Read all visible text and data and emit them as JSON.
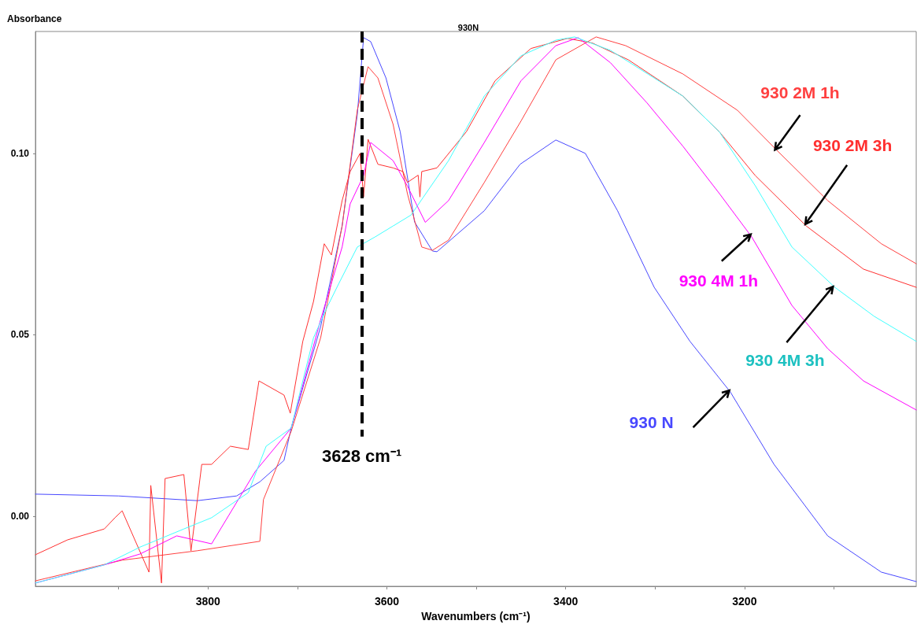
{
  "chart_data": {
    "type": "line",
    "title": "930N",
    "xlabel": "Wavenumbers (cm⁻¹)",
    "ylabel": "Absorbance",
    "xlim": [
      3993,
      3008
    ],
    "xticks": [
      {
        "value": 3900,
        "label": null
      },
      3800,
      {
        "value": 3700,
        "label": null
      },
      3600,
      {
        "value": 3500,
        "label": null
      },
      3400,
      {
        "value": 3300,
        "label": null
      },
      3200,
      {
        "value": 3100,
        "label": null
      }
    ],
    "ylim": [
      -0.0193,
      0.1336
    ],
    "yticks": [
      {
        "value": 0,
        "label": "0.00"
      },
      {
        "value": 0.05,
        "label": "0.05"
      },
      {
        "value": 0.1,
        "label": "0.10"
      }
    ],
    "grid": false,
    "marker": "none",
    "line_style": "solid",
    "series": [
      {
        "color": "#4848ff",
        "x": [
          3993,
          3900,
          3812,
          3768,
          3742,
          3715,
          3707,
          3674,
          3650,
          3633,
          3626,
          3618,
          3601,
          3585,
          3569,
          3549,
          3544,
          3491,
          3451,
          3411,
          3378,
          3342,
          3301,
          3261,
          3216,
          3167,
          3107,
          3047,
          3008
        ],
        "values": [
          0.0061,
          0.0056,
          0.0043,
          0.0056,
          0.0095,
          0.0154,
          0.0243,
          0.0523,
          0.08,
          0.1108,
          0.1319,
          0.1308,
          0.1208,
          0.1059,
          0.0811,
          0.0731,
          0.0729,
          0.0842,
          0.097,
          0.1037,
          0.1,
          0.0842,
          0.0631,
          0.0482,
          0.0343,
          0.0143,
          -0.0054,
          -0.0154,
          -0.018
        ]
      },
      {
        "color": "#ff4040",
        "x": [
          3993,
          3896,
          3812,
          3742,
          3738,
          3707,
          3674,
          3650,
          3633,
          3621,
          3610,
          3593,
          3577,
          3561,
          3549,
          3531,
          3491,
          3450,
          3411,
          3366,
          3333,
          3269,
          3208,
          3164,
          3107,
          3047,
          3008
        ],
        "values": [
          -0.0178,
          -0.0121,
          -0.0095,
          -0.0069,
          0.0046,
          0.0234,
          0.0492,
          0.08,
          0.112,
          0.1239,
          0.1208,
          0.108,
          0.0889,
          0.0742,
          0.0733,
          0.0761,
          0.092,
          0.1089,
          0.1258,
          0.1321,
          0.1297,
          0.1219,
          0.1119,
          0.1009,
          0.087,
          0.0751,
          0.0696
        ]
      },
      {
        "color": "#ff3030",
        "x": [
          3993,
          3957,
          3916,
          3904,
          3896,
          3866,
          3864,
          3852,
          3848,
          3827,
          3819,
          3807,
          3796,
          3775,
          3755,
          3743,
          3715,
          3708,
          3694,
          3682,
          3670,
          3662,
          3650,
          3641,
          3630,
          3626,
          3621,
          3610,
          3593,
          3582,
          3577,
          3565,
          3563,
          3561,
          3544,
          3511,
          3479,
          3439,
          3398,
          3370,
          3330,
          3269,
          3228,
          3188,
          3131,
          3067,
          3008
        ],
        "values": [
          -0.0106,
          -0.0065,
          -0.0035,
          -0.0004,
          0.0015,
          -0.0154,
          0.0085,
          -0.0184,
          0.0104,
          0.0115,
          -0.0095,
          0.0143,
          0.0143,
          0.0193,
          0.0184,
          0.0373,
          0.0334,
          0.0284,
          0.0482,
          0.0592,
          0.0751,
          0.072,
          0.087,
          0.095,
          0.1,
          0.088,
          0.1039,
          0.097,
          0.096,
          0.095,
          0.092,
          0.094,
          0.088,
          0.095,
          0.096,
          0.106,
          0.12,
          0.1289,
          0.1317,
          0.1304,
          0.1258,
          0.1158,
          0.1059,
          0.0939,
          0.08,
          0.0681,
          0.0631
        ]
      },
      {
        "color": "#ff00ff",
        "x": [
          3993,
          3916,
          3876,
          3835,
          3796,
          3747,
          3707,
          3674,
          3650,
          3641,
          3626,
          3618,
          3593,
          3577,
          3557,
          3531,
          3491,
          3450,
          3411,
          3386,
          3350,
          3309,
          3269,
          3228,
          3192,
          3147,
          3107,
          3067,
          3008
        ],
        "values": [
          -0.0184,
          -0.0134,
          -0.0104,
          -0.0054,
          -0.0076,
          0.0124,
          0.0243,
          0.0542,
          0.0742,
          0.0861,
          0.0939,
          0.103,
          0.098,
          0.091,
          0.081,
          0.087,
          0.103,
          0.12,
          0.1297,
          0.1319,
          0.125,
          0.1139,
          0.102,
          0.0889,
          0.077,
          0.0581,
          0.0462,
          0.0373,
          0.0293
        ]
      },
      {
        "color": "#40ffff",
        "x": [
          3993,
          3916,
          3876,
          3827,
          3796,
          3755,
          3735,
          3707,
          3682,
          3666,
          3654,
          3633,
          3613,
          3593,
          3573,
          3531,
          3491,
          3450,
          3411,
          3390,
          3350,
          3269,
          3228,
          3188,
          3147,
          3099,
          3055,
          3008
        ],
        "values": [
          -0.0184,
          -0.0134,
          -0.0085,
          -0.0035,
          -0.0004,
          0.0065,
          0.0193,
          0.0243,
          0.0492,
          0.058,
          0.064,
          0.0742,
          0.077,
          0.08,
          0.083,
          0.098,
          0.1158,
          0.1269,
          0.1312,
          0.1321,
          0.1284,
          0.1158,
          0.1059,
          0.0911,
          0.0742,
          0.0631,
          0.0551,
          0.0482
        ]
      }
    ],
    "ref_lines": [
      {
        "axis": "x",
        "value": 3628,
        "label": "3628 cm⁻¹",
        "color": "#000000",
        "line_style": "dashed"
      }
    ],
    "annotations": [
      {
        "text": "930 2M 1h",
        "x": 3166,
        "y": 0.101
      },
      {
        "text": "930 2M 3h",
        "x": 3132,
        "y": 0.0805
      },
      {
        "text": "930 4M 1h",
        "x": 3193,
        "y": 0.0777
      },
      {
        "text": "930 4M 3h",
        "x": 3101,
        "y": 0.0633
      },
      {
        "text": "930 N",
        "x": 3217,
        "y": 0.0347
      }
    ]
  }
}
